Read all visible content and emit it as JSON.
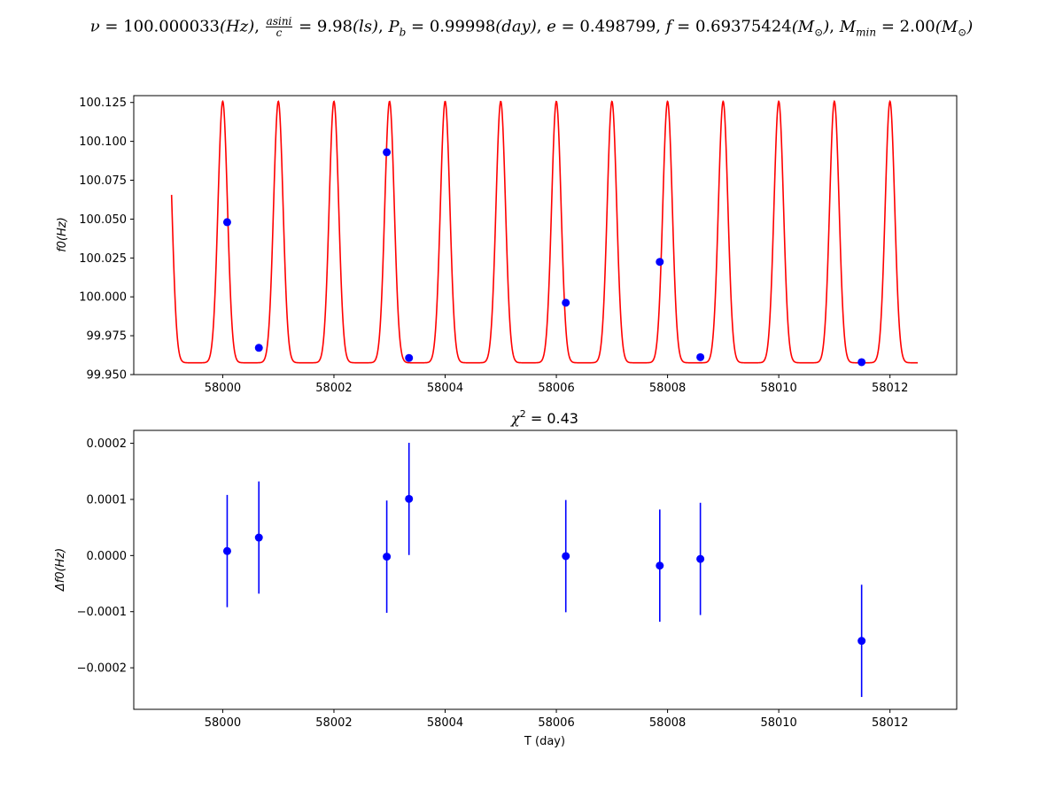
{
  "title": {
    "nu": "100.000033",
    "asini": "9.98",
    "pb": "0.99998",
    "e": "0.498799",
    "f": "0.69375424",
    "mmin": "2.00"
  },
  "colors": {
    "model": "#ff0000",
    "points": "#0000ff"
  },
  "chart_data": [
    {
      "type": "line+scatter",
      "title": "",
      "xlabel": "",
      "ylabel": "f0(Hz)",
      "xlim": [
        57998.4,
        58013.2
      ],
      "ylim": [
        99.95,
        100.1294
      ],
      "xticks": [
        58000,
        58002,
        58004,
        58006,
        58008,
        58010,
        58012
      ],
      "xtick_labels": [
        "58000",
        "58002",
        "58004",
        "58006",
        "58008",
        "58010",
        "58012"
      ],
      "yticks": [
        99.95,
        99.975,
        100.0,
        100.025,
        100.05,
        100.075,
        100.1,
        100.125
      ],
      "ytick_labels": [
        "99.950",
        "99.975",
        "100.000",
        "100.025",
        "100.050",
        "100.075",
        "100.100",
        "100.125"
      ],
      "grid": false,
      "model": {
        "color": "#ff0000",
        "x_range": [
          57999.08,
          58012.5
        ],
        "nu0": 100.000033,
        "period_days": 0.99998,
        "fmax": 100.1257,
        "fmin": 99.9576,
        "peak_times": [
          58000.0,
          58001.0,
          58002.0,
          58003.0,
          58004.0,
          58005.0,
          58006.0,
          58007.0,
          58008.0,
          58009.0,
          58010.0,
          58011.0,
          58012.0
        ]
      },
      "points": {
        "color": "#0000ff",
        "x": [
          58000.08,
          58000.65,
          58002.95,
          58003.35,
          58006.17,
          58007.86,
          58008.59,
          58011.49
        ],
        "y": [
          100.048,
          99.9672,
          100.093,
          99.9607,
          99.9962,
          100.0225,
          99.9612,
          99.958
        ]
      }
    },
    {
      "type": "errorbar",
      "title": "χ² = 0.43",
      "chi2": "0.43",
      "xlabel": "T (day)",
      "ylabel": "Δf0(Hz)",
      "xlim": [
        57998.4,
        58013.2
      ],
      "ylim": [
        -0.000274,
        0.000223
      ],
      "xticks": [
        58000,
        58002,
        58004,
        58006,
        58008,
        58010,
        58012
      ],
      "xtick_labels": [
        "58000",
        "58002",
        "58004",
        "58006",
        "58008",
        "58010",
        "58012"
      ],
      "yticks": [
        -0.0002,
        -0.0001,
        0.0,
        0.0001,
        0.0002
      ],
      "ytick_labels": [
        "−0.0002",
        "−0.0001",
        "0.0000",
        "0.0001",
        "0.0002"
      ],
      "grid": false,
      "color": "#0000ff",
      "x": [
        58000.08,
        58000.65,
        58002.95,
        58003.35,
        58006.17,
        58007.86,
        58008.59,
        58011.49
      ],
      "y": [
        8e-06,
        3.2e-05,
        -2e-06,
        0.000101,
        -1e-06,
        -1.8e-05,
        -6e-06,
        -0.000152
      ],
      "yerr": [
        0.0001,
        0.0001,
        0.0001,
        0.0001,
        0.0001,
        0.0001,
        0.0001,
        0.0001
      ]
    }
  ]
}
